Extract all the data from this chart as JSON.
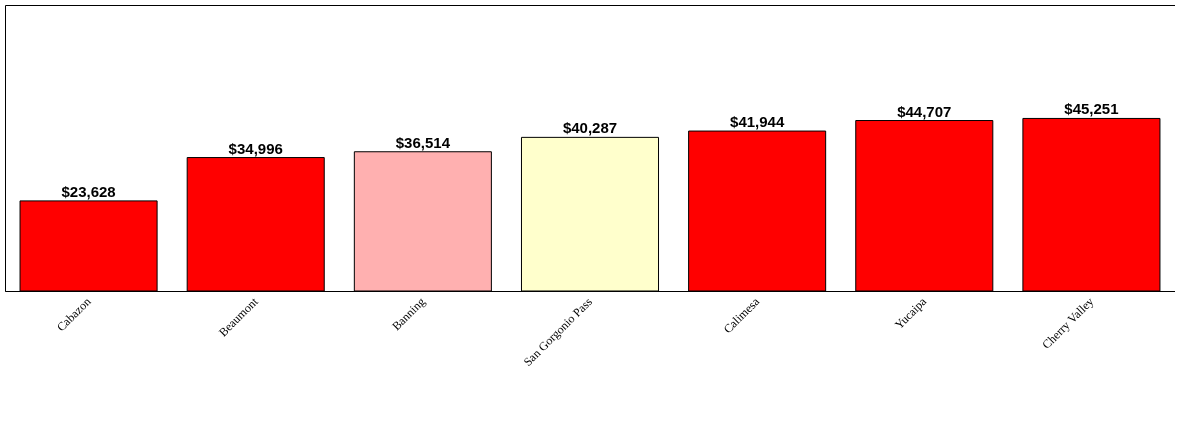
{
  "chart_data": {
    "type": "bar",
    "categories": [
      "Cabazon",
      "Beaumont",
      "Banning",
      "San Gorgonio Pass",
      "Calimesa",
      "Yucaipa",
      "Cherry Valley"
    ],
    "values": [
      23628,
      34996,
      36514,
      40287,
      41944,
      44707,
      45251
    ],
    "value_labels": [
      "$23,628",
      "$34,996",
      "$36,514",
      "$40,287",
      "$41,944",
      "$44,707",
      "$45,251"
    ],
    "colors": [
      "#ff0000",
      "#ff0000",
      "#ffb0b0",
      "#ffffcc",
      "#ff0000",
      "#ff0000",
      "#ff0000"
    ],
    "ylim": [
      0,
      75000
    ],
    "tick_labels": "x"
  }
}
